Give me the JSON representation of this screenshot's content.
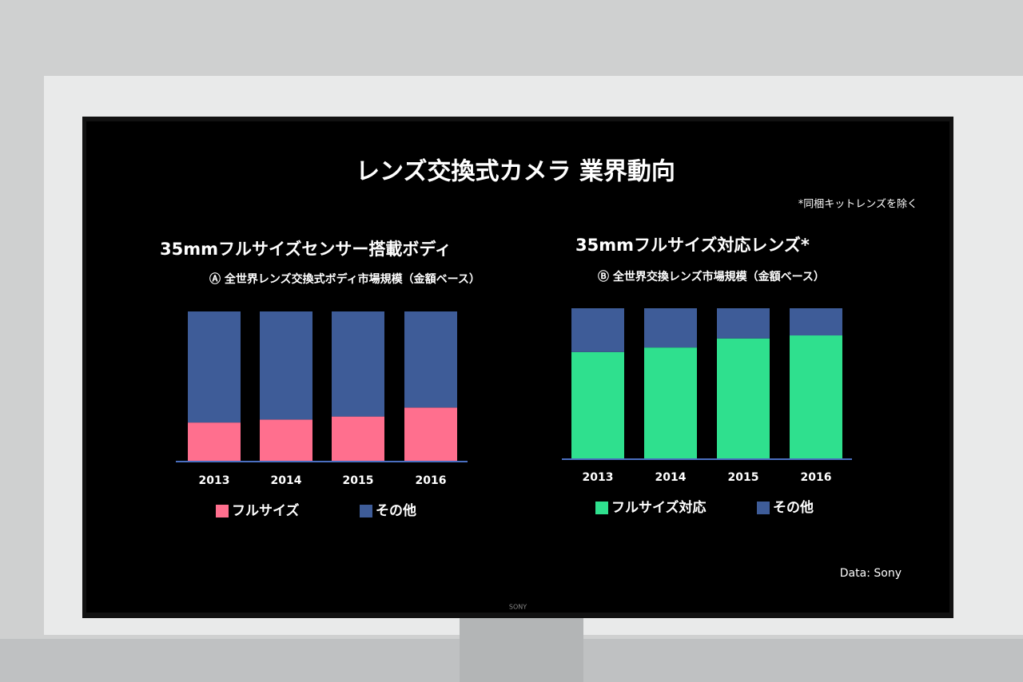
{
  "title": "レンズ交換式カメラ 業界動向",
  "note": "*同梱キットレンズを除く",
  "source": "Data: Sony",
  "brand": "SONY",
  "chart_data": [
    {
      "type": "stacked-bar",
      "title": "35mmフルサイズセンサー搭載ボディ",
      "subtitle": "Ⓐ 全世界レンズ交換式ボディ市場規模（金額ベース）",
      "categories": [
        "2013",
        "2014",
        "2015",
        "2016"
      ],
      "series": [
        {
          "name": "フルサイズ",
          "color": "#ff6f8e",
          "values": [
            26,
            28,
            30,
            36
          ]
        },
        {
          "name": "その他",
          "color": "#3e5c98",
          "values": [
            74,
            72,
            70,
            64
          ]
        }
      ],
      "ylim": [
        0,
        100
      ]
    },
    {
      "type": "stacked-bar",
      "title": "35mmフルサイズ対応レンズ*",
      "subtitle": "Ⓑ 全世界交換レンズ市場規模（金額ベース）",
      "categories": [
        "2013",
        "2014",
        "2015",
        "2016"
      ],
      "series": [
        {
          "name": "フルサイズ対応",
          "color": "#2fe08e",
          "values": [
            71,
            74,
            80,
            82
          ]
        },
        {
          "name": "その他",
          "color": "#3e5c98",
          "values": [
            29,
            26,
            20,
            18
          ]
        }
      ],
      "ylim": [
        0,
        100
      ]
    }
  ]
}
